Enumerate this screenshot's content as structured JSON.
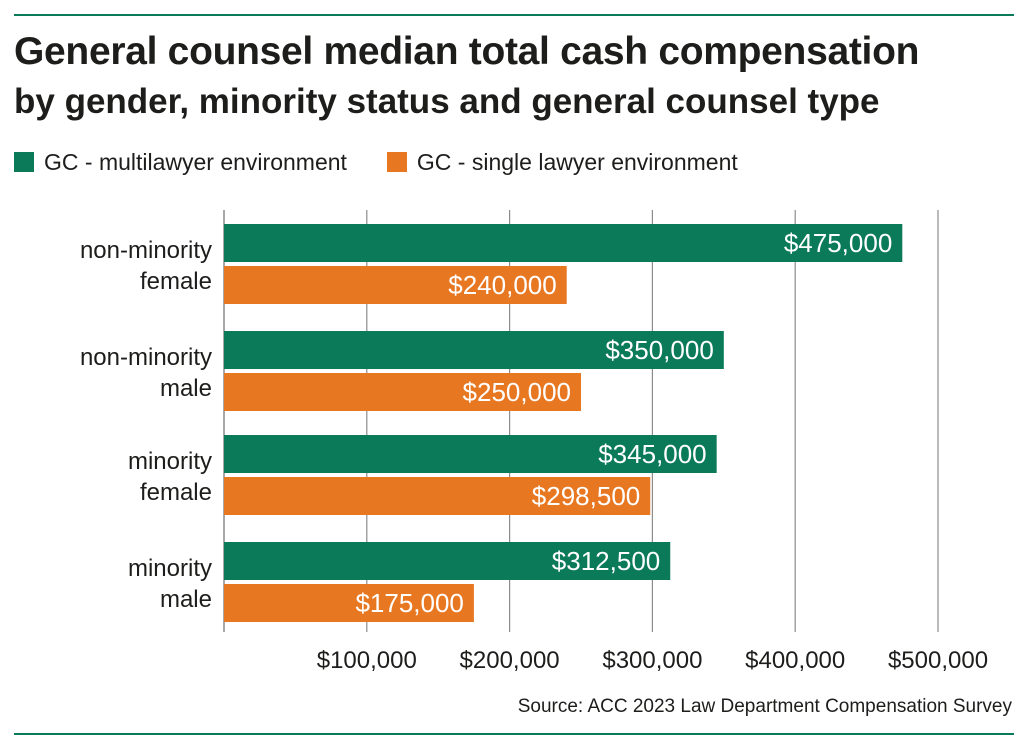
{
  "colors": {
    "multilawyer": "#0a7a58",
    "single_lawyer": "#e87722",
    "rule": "#0a7a58",
    "grid": "#8c8c8c",
    "text": "#1d1d1b"
  },
  "source": "Source: ACC 2023 Law Department Compensation Survey",
  "chart_data": {
    "type": "bar",
    "orientation": "horizontal",
    "title": "General counsel median total cash compensation",
    "subtitle": "by gender, minority status and general counsel type",
    "xlabel": "",
    "ylabel": "",
    "xlim": [
      0,
      500000
    ],
    "x_ticks": [
      100000,
      200000,
      300000,
      400000,
      500000
    ],
    "x_tick_labels": [
      "$100,000",
      "$200,000",
      "$300,000",
      "$400,000",
      "$500,000"
    ],
    "grid": "vertical",
    "legend_position": "top-left",
    "categories": [
      [
        "non-minority",
        "female"
      ],
      [
        "non-minority",
        "male"
      ],
      [
        "minority",
        "female"
      ],
      [
        "minority",
        "male"
      ]
    ],
    "series": [
      {
        "name": "GC - multilawyer environment",
        "color": "#0a7a58",
        "values": [
          475000,
          350000,
          345000,
          312500
        ],
        "labels": [
          "$475,000",
          "$350,000",
          "$345,000",
          "$312,500"
        ]
      },
      {
        "name": "GC - single lawyer environment",
        "color": "#e87722",
        "values": [
          240000,
          250000,
          298500,
          175000
        ],
        "labels": [
          "$240,000",
          "$250,000",
          "$298,500",
          "$175,000"
        ]
      }
    ]
  }
}
